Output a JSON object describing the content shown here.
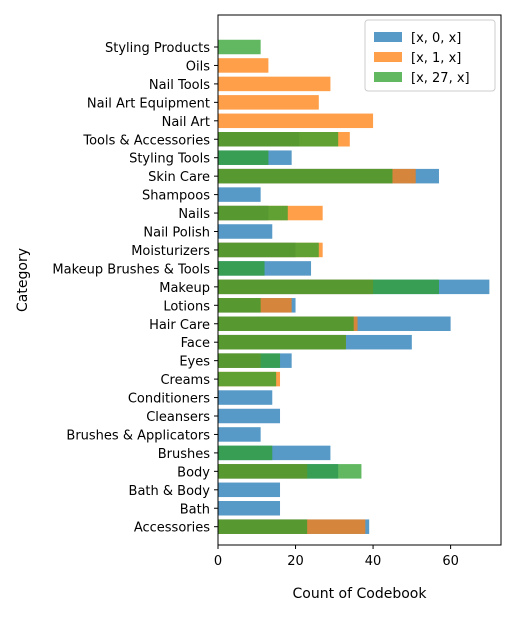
{
  "chart_data": {
    "type": "bar",
    "orientation": "horizontal",
    "title": "",
    "xlabel": "Count of Codebook",
    "ylabel": "Category",
    "xlim": [
      0,
      73
    ],
    "xticks": [
      0,
      20,
      40,
      60
    ],
    "grid": false,
    "legend_position": "top-right",
    "categories": [
      "Styling Products",
      "Oils",
      "Nail Tools",
      "Nail Art Equipment",
      "Nail Art",
      "Tools & Accessories",
      "Styling Tools",
      "Skin Care",
      "Shampoos",
      "Nails",
      "Nail Polish",
      "Moisturizers",
      "Makeup Brushes & Tools",
      "Makeup",
      "Lotions",
      "Hair Care",
      "Face",
      "Eyes",
      "Creams",
      "Conditioners",
      "Cleansers",
      "Brushes & Applicators",
      "Brushes",
      "Body",
      "Bath & Body",
      "Bath",
      "Accessories"
    ],
    "series": [
      {
        "name": "[x, 0, x]",
        "color": "#1f77b4",
        "values": [
          0,
          0,
          0,
          0,
          0,
          21,
          19,
          57,
          11,
          13,
          14,
          20,
          24,
          70,
          20,
          60,
          50,
          19,
          0,
          14,
          16,
          11,
          29,
          31,
          16,
          16,
          39
        ]
      },
      {
        "name": "[x, 1, x]",
        "color": "#ff7f0e",
        "values": [
          0,
          13,
          29,
          26,
          40,
          34,
          0,
          51,
          0,
          27,
          0,
          27,
          0,
          40,
          19,
          36,
          33,
          11,
          16,
          0,
          0,
          0,
          0,
          23,
          0,
          0,
          38
        ]
      },
      {
        "name": "[x, 27, x]",
        "color": "#2ca02c",
        "values": [
          11,
          0,
          0,
          0,
          0,
          31,
          13,
          45,
          0,
          18,
          0,
          26,
          12,
          57,
          11,
          35,
          33,
          16,
          15,
          0,
          0,
          0,
          14,
          37,
          0,
          0,
          23
        ]
      }
    ],
    "bar_opacity": 0.75
  }
}
